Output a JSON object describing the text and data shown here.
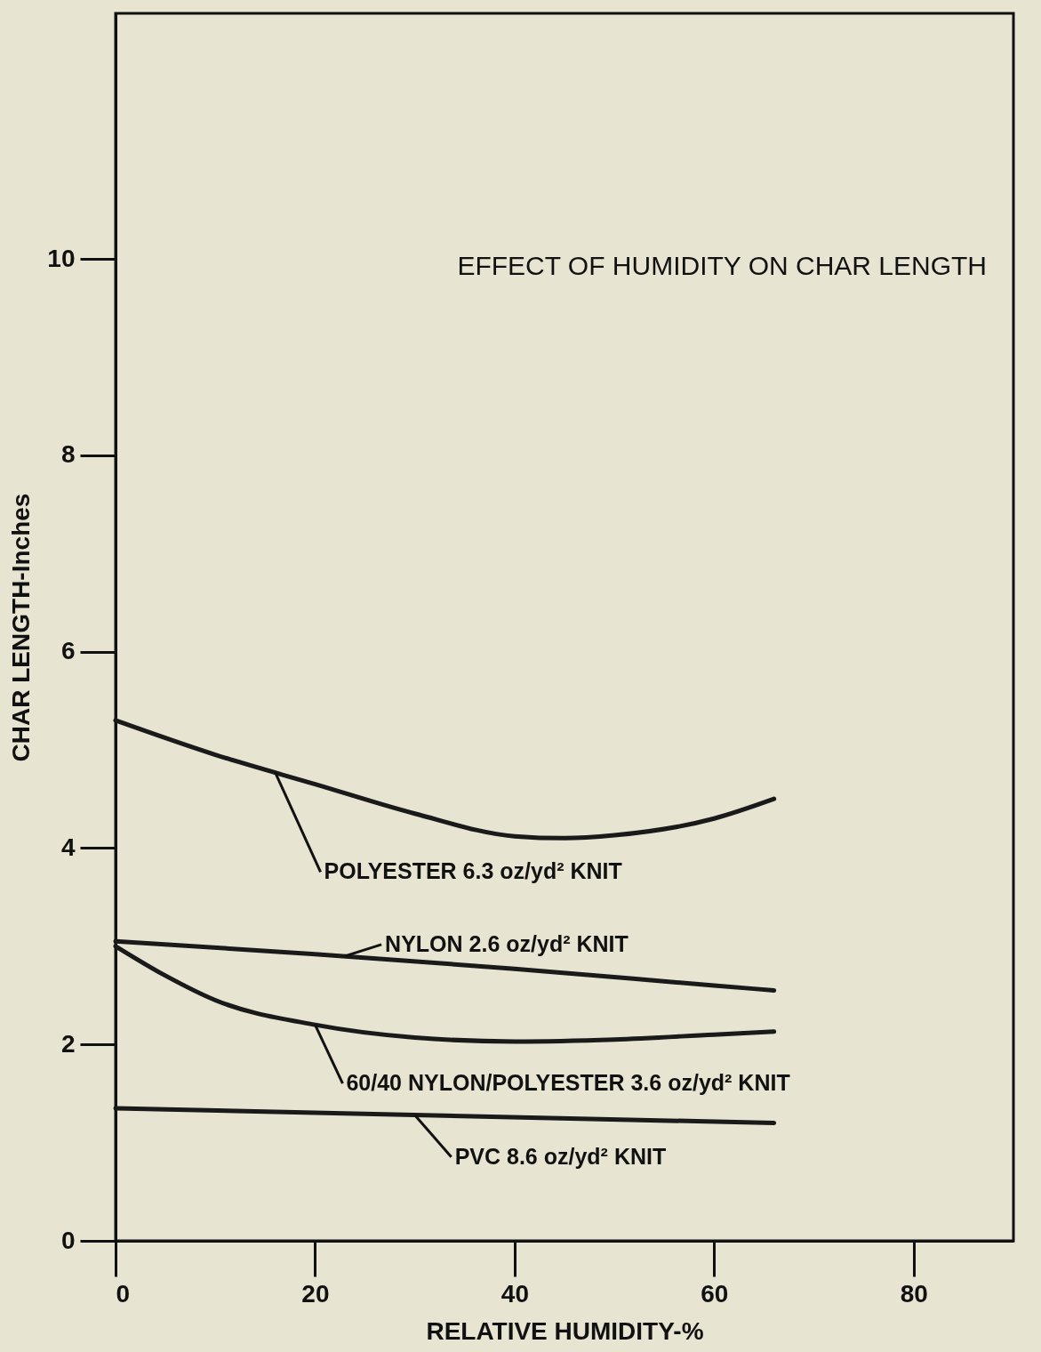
{
  "chart_data": {
    "type": "line",
    "title": "EFFECT OF HUMIDITY ON CHAR LENGTH",
    "xlabel": "RELATIVE HUMIDITY-%",
    "ylabel": "CHAR LENGTH-Inches",
    "xlim": [
      0,
      90
    ],
    "ylim": [
      0,
      12.5
    ],
    "xticks": [
      0,
      20,
      40,
      60,
      80
    ],
    "yticks": [
      0,
      2,
      4,
      6,
      8,
      10
    ],
    "series": [
      {
        "color": "#1a1a1a",
        "x": [
          0,
          10,
          20,
          30,
          40,
          45,
          50,
          60,
          66
        ],
        "values": [
          5.3,
          4.95,
          4.65,
          4.35,
          4.12,
          4.1,
          4.13,
          4.3,
          4.5
        ]
      },
      {
        "color": "#1a1a1a",
        "x": [
          0,
          20,
          40,
          60,
          66
        ],
        "values": [
          3.05,
          2.92,
          2.77,
          2.6,
          2.55
        ]
      },
      {
        "color": "#1a1a1a",
        "x": [
          0,
          5,
          10,
          20,
          30,
          40,
          50,
          60,
          66
        ],
        "values": [
          3.0,
          2.7,
          2.45,
          2.2,
          2.07,
          2.03,
          2.05,
          2.1,
          2.13
        ]
      },
      {
        "color": "#1a1a1a",
        "x": [
          0,
          66
        ],
        "values": [
          1.35,
          1.2
        ]
      }
    ],
    "annotations": [
      {
        "text": "POLYESTER 6.3 oz/yd² KNIT",
        "x": 16,
        "y": 4.77
      },
      {
        "text": "NYLON 2.6 oz/yd² KNIT",
        "x": 23,
        "y": 2.9
      },
      {
        "text": "60/40 NYLON/POLYESTER 3.6 oz/yd² KNIT",
        "x": 20,
        "y": 2.2
      },
      {
        "text": "PVC 8.6 oz/yd² KNIT",
        "x": 30,
        "y": 1.28
      }
    ]
  }
}
